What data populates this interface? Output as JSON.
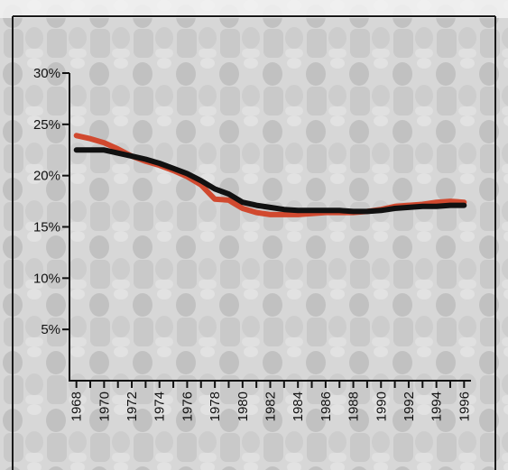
{
  "chart_data": {
    "type": "line",
    "title": "",
    "xlabel": "",
    "ylabel": "",
    "x": [
      1968,
      1969,
      1970,
      1971,
      1972,
      1973,
      1974,
      1975,
      1976,
      1977,
      1978,
      1979,
      1980,
      1981,
      1982,
      1983,
      1984,
      1985,
      1986,
      1987,
      1988,
      1989,
      1990,
      1991,
      1992,
      1993,
      1994,
      1995,
      1996
    ],
    "xlim": [
      1967.5,
      1996.5
    ],
    "ylim": [
      0,
      30
    ],
    "x_ticks": [
      "1968",
      "1970",
      "1972",
      "1974",
      "1976",
      "1978",
      "1980",
      "1982",
      "1984",
      "1986",
      "1988",
      "1990",
      "1992",
      "1994",
      "1996"
    ],
    "y_ticks": [
      "5%",
      "10%",
      "15%",
      "20%",
      "25%",
      "30%"
    ],
    "grid": false,
    "background": "photograph of a crowd of schoolchildren with hands over their hearts (faded)",
    "series": [
      {
        "color": "#d1492f",
        "values": [
          23.9,
          23.6,
          23.2,
          22.6,
          21.9,
          21.4,
          21.0,
          20.5,
          19.9,
          19.1,
          17.7,
          17.6,
          16.8,
          16.4,
          16.2,
          16.2,
          16.2,
          16.3,
          16.4,
          16.4,
          16.4,
          16.5,
          16.7,
          17.0,
          17.1,
          17.2,
          17.4,
          17.5,
          17.4
        ]
      },
      {
        "color": "#111111",
        "values": [
          22.5,
          22.5,
          22.5,
          22.2,
          21.9,
          21.6,
          21.2,
          20.7,
          20.2,
          19.5,
          18.7,
          18.2,
          17.4,
          17.1,
          16.9,
          16.7,
          16.6,
          16.6,
          16.6,
          16.6,
          16.5,
          16.5,
          16.6,
          16.8,
          16.9,
          17.0,
          17.0,
          17.1,
          17.1
        ]
      }
    ]
  }
}
